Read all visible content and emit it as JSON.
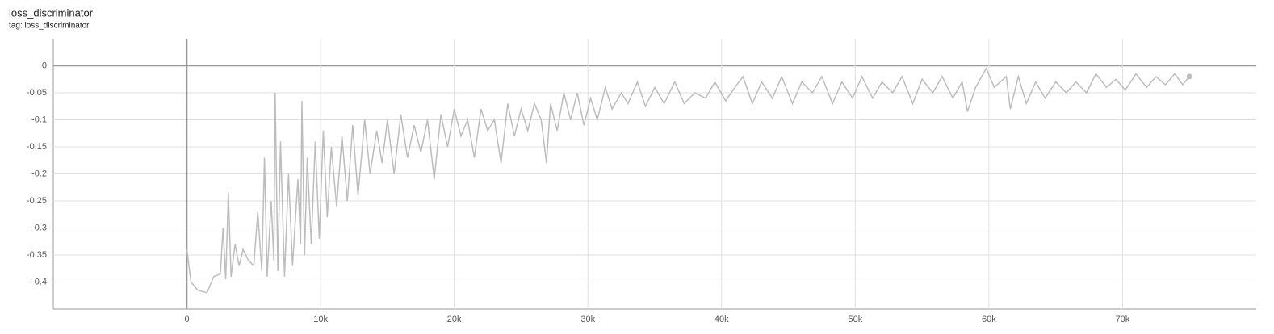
{
  "chart_data": {
    "type": "line",
    "title": "loss_discriminator",
    "subtitle": "tag: loss_discriminator",
    "xlim": [
      -10000,
      80000
    ],
    "ylim": [
      -0.45,
      0.05
    ],
    "xticks": [
      0,
      {
        "value": 10000,
        "label": "10k"
      },
      {
        "value": 20000,
        "label": "20k"
      },
      {
        "value": 30000,
        "label": "30k"
      },
      {
        "value": 40000,
        "label": "40k"
      },
      {
        "value": 50000,
        "label": "50k"
      },
      {
        "value": 60000,
        "label": "60k"
      },
      {
        "value": 70000,
        "label": "70k"
      }
    ],
    "yticks": [
      0,
      -0.05,
      -0.1,
      -0.15,
      -0.2,
      -0.25,
      -0.3,
      -0.35,
      -0.4
    ],
    "grid": true,
    "series": [
      {
        "color": "#bdbdbd",
        "x": [
          0,
          300,
          800,
          1500,
          2000,
          2500,
          2700,
          2900,
          3100,
          3300,
          3600,
          3900,
          4200,
          4600,
          5000,
          5300,
          5600,
          5800,
          6000,
          6300,
          6500,
          6600,
          6800,
          7000,
          7300,
          7600,
          7900,
          8300,
          8500,
          8600,
          8800,
          9000,
          9300,
          9600,
          9900,
          10200,
          10500,
          10800,
          11200,
          11600,
          12000,
          12400,
          12800,
          13300,
          13700,
          14200,
          14600,
          15000,
          15500,
          16000,
          16500,
          17000,
          17500,
          18000,
          18500,
          19000,
          19500,
          20000,
          20500,
          21000,
          21500,
          22000,
          22500,
          23000,
          23500,
          24000,
          24500,
          25000,
          25500,
          26000,
          26500,
          26900,
          27200,
          27700,
          28200,
          28700,
          29200,
          29700,
          30200,
          30700,
          31300,
          31800,
          32500,
          33000,
          33700,
          34300,
          35000,
          35700,
          36500,
          37200,
          38000,
          38800,
          39500,
          40300,
          41000,
          41600,
          42300,
          43000,
          43800,
          44500,
          45300,
          46000,
          46800,
          47500,
          48300,
          49000,
          49800,
          50500,
          51300,
          52000,
          52800,
          53500,
          54300,
          55000,
          55800,
          56500,
          57300,
          58000,
          58400,
          59000,
          59800,
          60400,
          61300,
          61600,
          62200,
          62800,
          63500,
          64200,
          65000,
          65800,
          66500,
          67300,
          68000,
          68800,
          69500,
          70200,
          71000,
          71800,
          72500,
          73200,
          73900,
          74500,
          75000
        ],
        "values": [
          -0.34,
          -0.4,
          -0.415,
          -0.42,
          -0.39,
          -0.385,
          -0.3,
          -0.395,
          -0.235,
          -0.39,
          -0.33,
          -0.37,
          -0.34,
          -0.36,
          -0.37,
          -0.27,
          -0.38,
          -0.17,
          -0.39,
          -0.25,
          -0.36,
          -0.05,
          -0.38,
          -0.14,
          -0.39,
          -0.2,
          -0.37,
          -0.21,
          -0.33,
          -0.065,
          -0.35,
          -0.17,
          -0.33,
          -0.14,
          -0.32,
          -0.12,
          -0.28,
          -0.15,
          -0.26,
          -0.13,
          -0.25,
          -0.11,
          -0.24,
          -0.1,
          -0.2,
          -0.12,
          -0.18,
          -0.1,
          -0.2,
          -0.09,
          -0.17,
          -0.11,
          -0.16,
          -0.1,
          -0.21,
          -0.09,
          -0.15,
          -0.08,
          -0.13,
          -0.1,
          -0.17,
          -0.08,
          -0.12,
          -0.1,
          -0.18,
          -0.07,
          -0.13,
          -0.08,
          -0.12,
          -0.07,
          -0.1,
          -0.18,
          -0.07,
          -0.12,
          -0.05,
          -0.1,
          -0.05,
          -0.11,
          -0.06,
          -0.1,
          -0.04,
          -0.08,
          -0.05,
          -0.07,
          -0.03,
          -0.075,
          -0.04,
          -0.07,
          -0.03,
          -0.07,
          -0.05,
          -0.06,
          -0.03,
          -0.065,
          -0.04,
          -0.02,
          -0.07,
          -0.03,
          -0.06,
          -0.02,
          -0.07,
          -0.03,
          -0.05,
          -0.02,
          -0.07,
          -0.03,
          -0.06,
          -0.02,
          -0.06,
          -0.03,
          -0.05,
          -0.02,
          -0.07,
          -0.025,
          -0.05,
          -0.02,
          -0.06,
          -0.03,
          -0.085,
          -0.04,
          -0.005,
          -0.04,
          -0.02,
          -0.08,
          -0.02,
          -0.07,
          -0.03,
          -0.06,
          -0.03,
          -0.05,
          -0.03,
          -0.05,
          -0.015,
          -0.04,
          -0.025,
          -0.045,
          -0.015,
          -0.04,
          -0.02,
          -0.035,
          -0.015,
          -0.035,
          -0.02
        ]
      }
    ]
  }
}
